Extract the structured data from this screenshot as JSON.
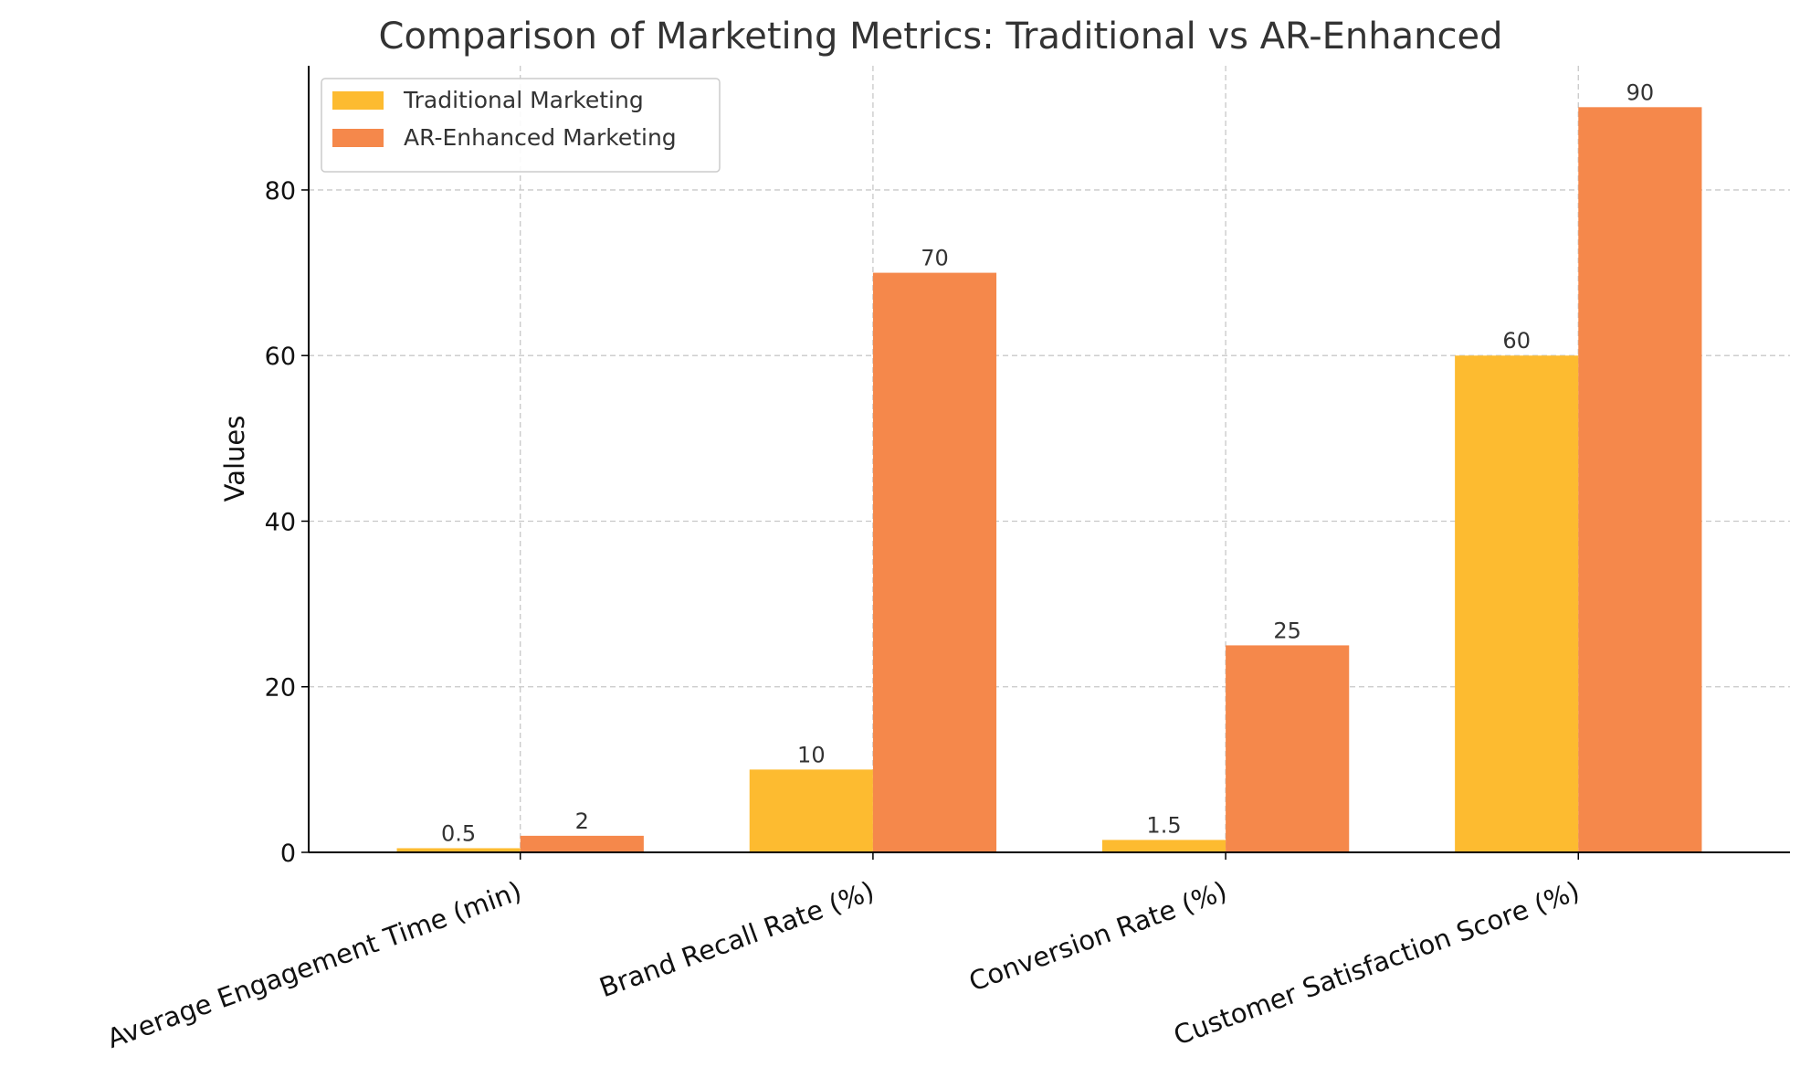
{
  "chart_data": {
    "type": "bar",
    "title": "Comparison of Marketing Metrics: Traditional vs AR-Enhanced",
    "xlabel": "",
    "ylabel": "Values",
    "ylim": [
      0,
      95
    ],
    "yticks": [
      0,
      20,
      40,
      60,
      80
    ],
    "grid": true,
    "legend_position": "top-left",
    "categories": [
      "Average Engagement Time (min)",
      "Brand Recall Rate (%)",
      "Conversion Rate (%)",
      "Customer Satisfaction Score (%)"
    ],
    "series": [
      {
        "name": "Traditional Marketing",
        "color": "#FDBB30",
        "values": [
          0.5,
          10,
          1.5,
          60
        ],
        "labels": [
          "0.5",
          "10",
          "1.5",
          "60"
        ]
      },
      {
        "name": "AR-Enhanced Marketing",
        "color": "#F5884B",
        "values": [
          2,
          70,
          25,
          90
        ],
        "labels": [
          "2",
          "70",
          "25",
          "90"
        ]
      }
    ]
  }
}
